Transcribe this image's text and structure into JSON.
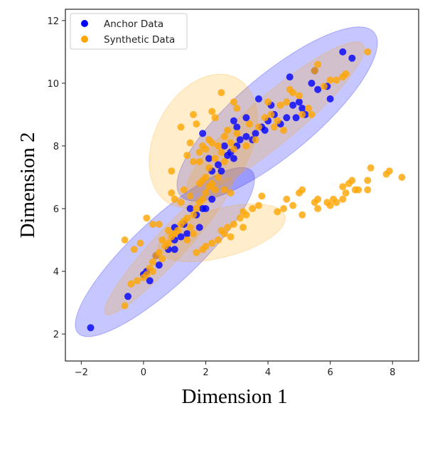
{
  "chart_data": {
    "type": "scatter",
    "title": "",
    "xlabel": "Dimension 1",
    "ylabel": "Dimension 2",
    "xlim": [
      -2.51,
      8.84
    ],
    "ylim": [
      1.14,
      12.36
    ],
    "xticks": [
      -2,
      0,
      2,
      4,
      6,
      8
    ],
    "yticks": [
      2,
      4,
      6,
      8,
      10,
      12
    ],
    "grid": false,
    "legend_position": "top-left",
    "series": [
      {
        "name": "Anchor Data",
        "color": "#0000ff",
        "points": [
          [
            -1.7,
            2.2
          ],
          [
            -0.5,
            3.2
          ],
          [
            0,
            3.9
          ],
          [
            0.1,
            4.0
          ],
          [
            0.2,
            3.7
          ],
          [
            0.5,
            4.2
          ],
          [
            0.8,
            4.7
          ],
          [
            1.0,
            4.7
          ],
          [
            1.0,
            5.0
          ],
          [
            1.2,
            5.1
          ],
          [
            1.3,
            5.5
          ],
          [
            1.4,
            5.2
          ],
          [
            1.8,
            5.4
          ],
          [
            1.9,
            6.0
          ],
          [
            2.0,
            6.0
          ],
          [
            1.5,
            6.0
          ],
          [
            1.7,
            5.8
          ],
          [
            2.2,
            7.2
          ],
          [
            2.4,
            7.4
          ],
          [
            2.5,
            7.2
          ],
          [
            2.7,
            7.7
          ],
          [
            2.9,
            7.6
          ],
          [
            3.0,
            8.0
          ],
          [
            3.1,
            8.2
          ],
          [
            3.3,
            8.3
          ],
          [
            3.5,
            8.2
          ],
          [
            3.6,
            8.4
          ],
          [
            3.7,
            9.5
          ],
          [
            3.8,
            8.6
          ],
          [
            3.9,
            8.5
          ],
          [
            4.0,
            8.8
          ],
          [
            4.1,
            9.3
          ],
          [
            4.2,
            9.0
          ],
          [
            4.4,
            8.7
          ],
          [
            4.6,
            8.9
          ],
          [
            4.7,
            10.2
          ],
          [
            4.8,
            9.3
          ],
          [
            4.9,
            8.9
          ],
          [
            5.0,
            9.4
          ],
          [
            5.1,
            9.2
          ],
          [
            5.2,
            9.0
          ],
          [
            5.4,
            10.0
          ],
          [
            5.5,
            10.4
          ],
          [
            5.6,
            9.8
          ],
          [
            6.0,
            9.5
          ],
          [
            6.4,
            11.0
          ],
          [
            6.7,
            10.8
          ],
          [
            2.9,
            8.8
          ],
          [
            3.0,
            8.6
          ],
          [
            2.6,
            8.0
          ],
          [
            2.8,
            7.8
          ],
          [
            1.9,
            8.4
          ],
          [
            2.1,
            7.6
          ],
          [
            3.3,
            8.9
          ],
          [
            5.9,
            9.9
          ],
          [
            2.2,
            6.3
          ],
          [
            1.0,
            5.4
          ],
          [
            0.4,
            4.5
          ]
        ]
      },
      {
        "name": "Synthetic Data",
        "color": "#ffa500",
        "points": [
          [
            1.7,
            4.6
          ],
          [
            1.9,
            4.7
          ],
          [
            2.0,
            4.8
          ],
          [
            2.2,
            4.9
          ],
          [
            2.4,
            5.0
          ],
          [
            2.6,
            5.2
          ],
          [
            2.7,
            5.4
          ],
          [
            2.9,
            5.5
          ],
          [
            3.1,
            5.7
          ],
          [
            3.2,
            5.9
          ],
          [
            3.3,
            5.8
          ],
          [
            3.5,
            6.0
          ],
          [
            3.2,
            5.4
          ],
          [
            3.8,
            6.4
          ],
          [
            3.7,
            6.1
          ],
          [
            4.3,
            5.9
          ],
          [
            4.5,
            6.0
          ],
          [
            4.6,
            6.3
          ],
          [
            4.8,
            6.1
          ],
          [
            5.0,
            6.5
          ],
          [
            5.1,
            6.6
          ],
          [
            5.1,
            5.8
          ],
          [
            5.5,
            6.2
          ],
          [
            5.6,
            6.3
          ],
          [
            5.6,
            6.0
          ],
          [
            6.0,
            6.1
          ],
          [
            6.2,
            6.2
          ],
          [
            6.4,
            6.3
          ],
          [
            6.4,
            6.7
          ],
          [
            6.5,
            6.5
          ],
          [
            6.6,
            6.8
          ],
          [
            6.7,
            6.9
          ],
          [
            6.8,
            6.6
          ],
          [
            6.9,
            6.6
          ],
          [
            7.2,
            6.9
          ],
          [
            7.3,
            7.3
          ],
          [
            7.2,
            6.6
          ],
          [
            7.8,
            7.1
          ],
          [
            7.9,
            7.2
          ],
          [
            8.3,
            7.0
          ],
          [
            5.9,
            6.2
          ],
          [
            6.1,
            6.3
          ],
          [
            2.8,
            5.1
          ],
          [
            2.5,
            5.3
          ],
          [
            -0.6,
            2.9
          ],
          [
            -0.6,
            5.0
          ],
          [
            -0.4,
            3.6
          ],
          [
            -0.3,
            4.7
          ],
          [
            -0.2,
            3.7
          ],
          [
            0.0,
            3.8
          ],
          [
            0.1,
            3.9
          ],
          [
            0.2,
            4.1
          ],
          [
            0.3,
            4.3
          ],
          [
            0.4,
            4.5
          ],
          [
            0.5,
            4.6
          ],
          [
            0.6,
            4.4
          ],
          [
            0.7,
            4.8
          ],
          [
            0.8,
            4.9
          ],
          [
            0.9,
            5.1
          ],
          [
            1.0,
            5.2
          ],
          [
            1.1,
            5.3
          ],
          [
            1.2,
            5.5
          ],
          [
            1.3,
            5.6
          ],
          [
            1.4,
            5.7
          ],
          [
            1.5,
            5.4
          ],
          [
            1.6,
            5.8
          ],
          [
            1.7,
            6.0
          ],
          [
            1.8,
            6.2
          ],
          [
            1.9,
            6.3
          ],
          [
            2.0,
            6.5
          ],
          [
            2.1,
            6.7
          ],
          [
            2.2,
            6.8
          ],
          [
            0.1,
            5.7
          ],
          [
            0.3,
            5.5
          ],
          [
            0.5,
            5.5
          ],
          [
            0.8,
            5.3
          ],
          [
            1.2,
            6.2
          ],
          [
            1.5,
            6.4
          ],
          [
            0.9,
            6.5
          ],
          [
            1.0,
            6.3
          ],
          [
            1.4,
            5.0
          ],
          [
            1.6,
            5.2
          ],
          [
            0.6,
            5.0
          ],
          [
            -0.1,
            4.9
          ],
          [
            0.3,
            4.0
          ],
          [
            1.3,
            6.6
          ],
          [
            1.8,
            6.8
          ],
          [
            2.3,
            6.6
          ],
          [
            2.6,
            6.6
          ],
          [
            2.8,
            6.5
          ],
          [
            0.9,
            7.2
          ],
          [
            1.2,
            8.6
          ],
          [
            1.6,
            9.0
          ],
          [
            1.7,
            8.7
          ],
          [
            1.5,
            8.1
          ],
          [
            1.4,
            7.7
          ],
          [
            1.6,
            7.5
          ],
          [
            1.8,
            7.8
          ],
          [
            1.9,
            8.0
          ],
          [
            2.0,
            7.9
          ],
          [
            2.1,
            8.2
          ],
          [
            2.2,
            8.1
          ],
          [
            2.3,
            7.6
          ],
          [
            2.4,
            8.0
          ],
          [
            2.5,
            7.8
          ],
          [
            2.6,
            8.3
          ],
          [
            2.7,
            8.5
          ],
          [
            2.2,
            9.1
          ],
          [
            2.3,
            8.9
          ],
          [
            2.5,
            9.7
          ],
          [
            2.9,
            9.4
          ],
          [
            3.0,
            9.2
          ],
          [
            2.0,
            7.0
          ],
          [
            2.1,
            7.3
          ],
          [
            1.8,
            7.5
          ],
          [
            2.4,
            7.0
          ],
          [
            2.8,
            8.1
          ],
          [
            3.0,
            8.4
          ],
          [
            2.6,
            7.5
          ],
          [
            1.9,
            6.9
          ],
          [
            3.4,
            8.7
          ],
          [
            3.6,
            8.2
          ],
          [
            3.9,
            8.9
          ],
          [
            4.1,
            9.0
          ],
          [
            4.2,
            8.6
          ],
          [
            4.3,
            8.8
          ],
          [
            4.4,
            9.3
          ],
          [
            4.6,
            9.4
          ],
          [
            4.7,
            9.8
          ],
          [
            4.8,
            9.7
          ],
          [
            5.0,
            9.6
          ],
          [
            5.3,
            9.2
          ],
          [
            5.4,
            9.0
          ],
          [
            5.5,
            10.4
          ],
          [
            5.6,
            10.6
          ],
          [
            5.8,
            9.9
          ],
          [
            6.0,
            10.1
          ],
          [
            6.2,
            10.1
          ],
          [
            6.4,
            10.2
          ],
          [
            6.5,
            10.3
          ],
          [
            7.2,
            11.0
          ],
          [
            3.7,
            8.6
          ],
          [
            4.0,
            9.4
          ],
          [
            4.5,
            8.5
          ],
          [
            5.1,
            9.0
          ],
          [
            3.3,
            8.0
          ],
          [
            2.9,
            7.9
          ]
        ]
      }
    ]
  }
}
